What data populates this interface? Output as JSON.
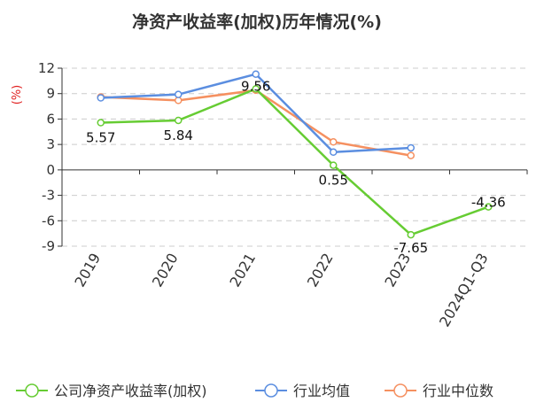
{
  "chart_data": {
    "type": "line",
    "title": "净资产收益率(加权)历年情况(%)",
    "ylabel": "(%)",
    "xlabel": "",
    "categories": [
      "2019",
      "2020",
      "2021",
      "2022",
      "2023",
      "2024Q1-Q3"
    ],
    "ylim": [
      -9,
      12
    ],
    "yticks": [
      -9,
      -6,
      -3,
      0,
      3,
      6,
      9,
      12
    ],
    "grid": true,
    "legend_position": "bottom",
    "series": [
      {
        "name": "公司净资产收益率(加权)",
        "color": "#66cc33",
        "values": [
          5.57,
          5.84,
          9.56,
          0.55,
          -7.65,
          -4.36
        ],
        "labels": [
          "5.57",
          "5.84",
          "9.56",
          "0.55",
          "-7.65",
          "-4.36"
        ]
      },
      {
        "name": "行业均值",
        "color": "#5b8ee0",
        "values": [
          8.5,
          8.9,
          11.3,
          2.1,
          2.6,
          null
        ]
      },
      {
        "name": "行业中位数",
        "color": "#f59060",
        "values": [
          8.6,
          8.2,
          9.4,
          3.3,
          1.7,
          null
        ]
      }
    ]
  }
}
